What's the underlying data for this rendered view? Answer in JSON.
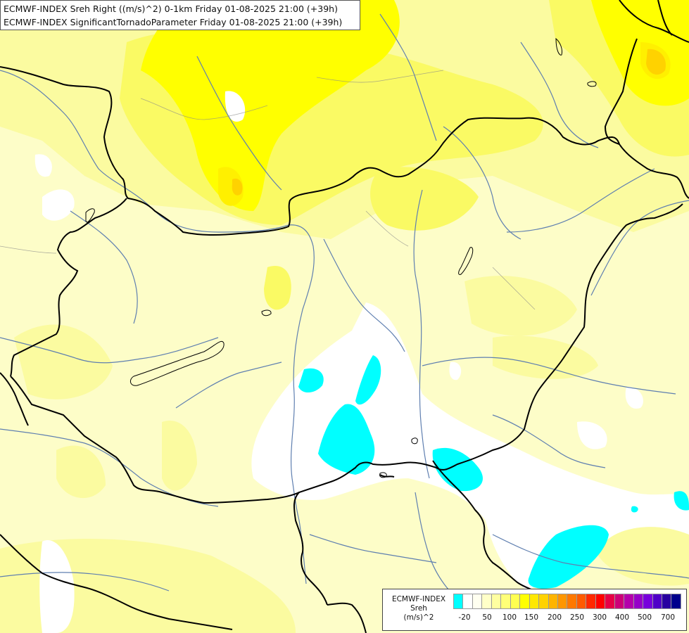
{
  "title": {
    "line1": "ECMWF-INDEX Sreh Right ((m/s)^2) 0-1km Friday 01-08-2025 21:00 (+39h)",
    "line2": "ECMWF-INDEX SignificantTornadoParameter Friday 01-08-2025 21:00 (+39h)"
  },
  "legend": {
    "line1": "ECMWF-INDEX",
    "line2": "Sreh",
    "line3": "(m/s)^2",
    "ticks": [
      "-20",
      "50",
      "100",
      "150",
      "200",
      "250",
      "300",
      "400",
      "500",
      "700"
    ],
    "colors": [
      "#00ffff",
      "#ffffff",
      "#fffff0",
      "#ffffc8",
      "#ffffa0",
      "#ffff78",
      "#ffff50",
      "#ffff00",
      "#ffe800",
      "#ffd200",
      "#ffb400",
      "#ff9600",
      "#ff7800",
      "#ff5a00",
      "#ff2800",
      "#ff0000",
      "#e60046",
      "#cc0078",
      "#b400aa",
      "#9600c8",
      "#7800dc",
      "#5000c8",
      "#2800a0",
      "#00008c"
    ]
  },
  "map": {
    "colors": {
      "base": "#fdfdc8",
      "light": "#fbfba0",
      "yellow": "#fafa64",
      "strong": "#ffff00",
      "deep": "#fff000",
      "orange": "#ffd200",
      "white": "#ffffff",
      "cyan": "#00ffff",
      "border": "#000000",
      "river": "#5f7fb0"
    }
  }
}
